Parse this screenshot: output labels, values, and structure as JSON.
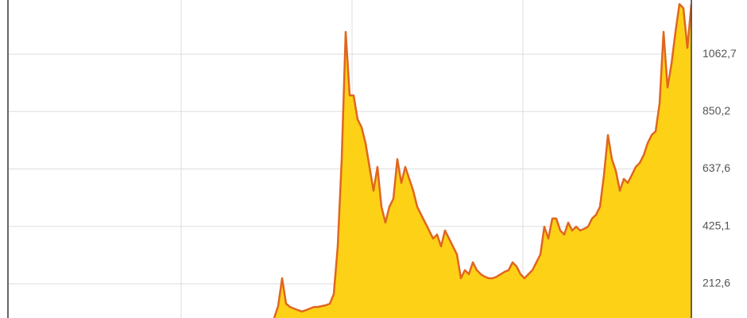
{
  "chart_data": {
    "type": "area",
    "values": [
      86,
      130,
      233,
      139,
      127,
      121,
      115,
      110,
      115,
      121,
      127,
      127,
      130,
      133,
      139,
      174,
      351,
      674,
      1145,
      910,
      910,
      821,
      792,
      733,
      645,
      557,
      645,
      498,
      439,
      498,
      527,
      674,
      586,
      645,
      601,
      557,
      498,
      468,
      439,
      410,
      380,
      395,
      351,
      410,
      380,
      351,
      321,
      233,
      263,
      248,
      292,
      263,
      248,
      239,
      233,
      233,
      239,
      248,
      257,
      263,
      292,
      277,
      248,
      233,
      248,
      263,
      292,
      321,
      424,
      380,
      454,
      454,
      410,
      395,
      439,
      410,
      424,
      410,
      416,
      424,
      454,
      468,
      498,
      615,
      763,
      674,
      630,
      557,
      601,
      586,
      615,
      645,
      660,
      689,
      733,
      763,
      777,
      880,
      1145,
      939,
      1027,
      1145,
      1248,
      1233,
      1086,
      1248
    ],
    "color": "#fcd116",
    "line_color": "#e0661f",
    "ylim": [
      86,
      1263
    ],
    "yticks": [
      {
        "value": 212.6,
        "label": "212,6"
      },
      {
        "value": 425.1,
        "label": "425,1"
      },
      {
        "value": 637.6,
        "label": "637,6"
      },
      {
        "value": 850.2,
        "label": "850,2"
      },
      {
        "value": 1062.7,
        "label": "1062,7"
      }
    ],
    "grid": true
  }
}
